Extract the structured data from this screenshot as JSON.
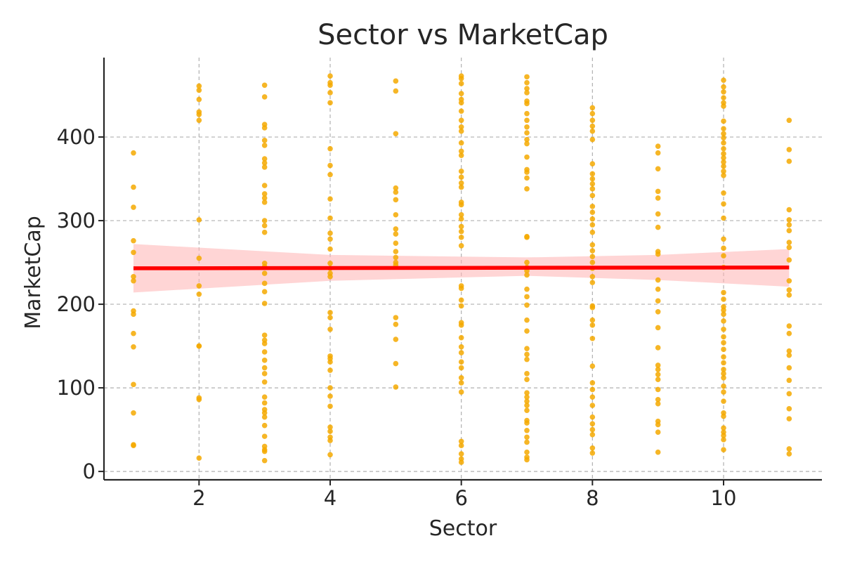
{
  "chart_data": {
    "type": "scatter",
    "title": "Sector vs MarketCap",
    "xlabel": "Sector",
    "ylabel": "MarketCap",
    "xlim": [
      0.55,
      11.5
    ],
    "ylim": [
      -10,
      495
    ],
    "xticks": [
      2,
      4,
      6,
      8,
      10
    ],
    "yticks": [
      0,
      100,
      200,
      300,
      400
    ],
    "grid": true,
    "point_color": "#F5A900",
    "line_color": "#FF0000",
    "band_color": "#FFB3B3",
    "regression": {
      "points": [
        [
          1,
          243
        ],
        [
          11,
          244
        ]
      ],
      "ci_upper": [
        [
          1,
          272
        ],
        [
          4,
          259
        ],
        [
          7,
          256
        ],
        [
          9,
          259
        ],
        [
          11,
          266
        ]
      ],
      "ci_lower": [
        [
          1,
          214
        ],
        [
          4,
          228
        ],
        [
          7,
          234
        ],
        [
          9,
          229
        ],
        [
          11,
          221
        ]
      ]
    },
    "series": [
      {
        "x": 1,
        "y": [
          381,
          340,
          316,
          276,
          262,
          233,
          228,
          192,
          188,
          165,
          149,
          104,
          70,
          32,
          31
        ]
      },
      {
        "x": 2,
        "y": [
          461,
          456,
          445,
          430,
          427,
          420,
          301,
          255,
          222,
          212,
          150,
          150,
          88,
          86,
          16
        ]
      },
      {
        "x": 3,
        "y": [
          462,
          448,
          415,
          411,
          396,
          390,
          374,
          369,
          364,
          342,
          332,
          327,
          322,
          300,
          294,
          286,
          249,
          245,
          237,
          225,
          215,
          201,
          163,
          157,
          153,
          143,
          133,
          124,
          117,
          107,
          89,
          82,
          74,
          70,
          65,
          55,
          42,
          30,
          26,
          24,
          13
        ]
      },
      {
        "x": 4,
        "y": [
          473,
          465,
          462,
          453,
          441,
          386,
          366,
          355,
          326,
          303,
          285,
          278,
          266,
          249,
          243,
          237,
          233,
          190,
          184,
          170,
          138,
          135,
          131,
          121,
          100,
          90,
          78,
          53,
          48,
          41,
          37,
          20
        ]
      },
      {
        "x": 5,
        "y": [
          467,
          455,
          404,
          339,
          334,
          325,
          307,
          290,
          284,
          273,
          263,
          256,
          250,
          247,
          184,
          176,
          158,
          129,
          101
        ]
      },
      {
        "x": 6,
        "y": [
          473,
          470,
          464,
          452,
          445,
          441,
          431,
          420,
          412,
          407,
          393,
          383,
          378,
          359,
          352,
          345,
          340,
          322,
          319,
          307,
          302,
          293,
          287,
          280,
          270,
          222,
          219,
          205,
          198,
          178,
          175,
          160,
          149,
          142,
          131,
          124,
          112,
          106,
          95,
          36,
          31,
          21,
          15,
          11
        ]
      },
      {
        "x": 7,
        "y": [
          472,
          465,
          458,
          453,
          443,
          440,
          428,
          420,
          412,
          405,
          397,
          392,
          376,
          361,
          358,
          351,
          338,
          281,
          280,
          250,
          244,
          240,
          235,
          218,
          209,
          199,
          181,
          168,
          147,
          140,
          134,
          117,
          110,
          94,
          89,
          84,
          79,
          73,
          61,
          58,
          49,
          41,
          35,
          23,
          17,
          14
        ]
      },
      {
        "x": 8,
        "y": [
          435,
          428,
          420,
          413,
          407,
          397,
          368,
          356,
          350,
          344,
          338,
          330,
          317,
          310,
          302,
          295,
          286,
          271,
          264,
          257,
          250,
          243,
          233,
          226,
          198,
          196,
          181,
          175,
          159,
          126,
          106,
          98,
          89,
          79,
          65,
          57,
          50,
          44,
          28,
          22
        ]
      },
      {
        "x": 9,
        "y": [
          389,
          381,
          362,
          335,
          327,
          308,
          292,
          263,
          260,
          229,
          218,
          204,
          191,
          172,
          148,
          127,
          122,
          116,
          110,
          98,
          86,
          81,
          60,
          56,
          47,
          23
        ]
      },
      {
        "x": 10,
        "y": [
          468,
          460,
          454,
          447,
          441,
          437,
          419,
          410,
          404,
          399,
          393,
          386,
          380,
          375,
          370,
          365,
          359,
          354,
          333,
          320,
          303,
          278,
          267,
          258,
          244,
          214,
          206,
          197,
          193,
          188,
          180,
          170,
          161,
          154,
          146,
          137,
          130,
          122,
          117,
          112,
          102,
          95,
          84,
          70,
          66,
          52,
          47,
          43,
          38,
          26
        ]
      },
      {
        "x": 11,
        "y": [
          420,
          385,
          371,
          313,
          301,
          295,
          288,
          274,
          268,
          253,
          228,
          217,
          211,
          174,
          165,
          144,
          139,
          124,
          109,
          93,
          75,
          63,
          27,
          21
        ]
      }
    ]
  }
}
